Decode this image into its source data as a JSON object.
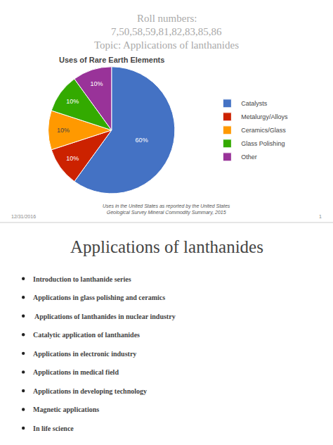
{
  "chart_data": {
    "type": "pie",
    "title": "Uses of Rare Earth Elements",
    "categories": [
      "Catalysts",
      "Metalurgy/Alloys",
      "Ceramics/Glass",
      "Glass Polishing",
      "Other"
    ],
    "values": [
      60,
      10,
      10,
      10,
      10
    ],
    "value_labels": [
      "60%",
      "10%",
      "10%",
      "10%",
      "10%"
    ],
    "colors": [
      "#4472c4",
      "#cc2200",
      "#ff9900",
      "#33aa00",
      "#993399"
    ],
    "data_labels": true,
    "legend": "right",
    "annotations": [
      "Roll numbers:",
      "7,50,58,59,81,82,83,85,86",
      "Topic: Applications of lanthanides",
      "12/31/2016",
      "1",
      "Applications of lanthanides",
      "Uses in the United States as reported by the United States\nGeological Survey Mineral Commodity Summary, 2015",
      "Introduction to lanthanide series",
      "Applications in glass polishing and ceramics",
      " Applications of lanthanides in nuclear industry",
      "Catalytic application of lanthanides",
      "Applications in electronic industry",
      "Applications in medical field",
      "Applications in developing technology",
      "Magnetic applications",
      "In life science"
    ]
  }
}
